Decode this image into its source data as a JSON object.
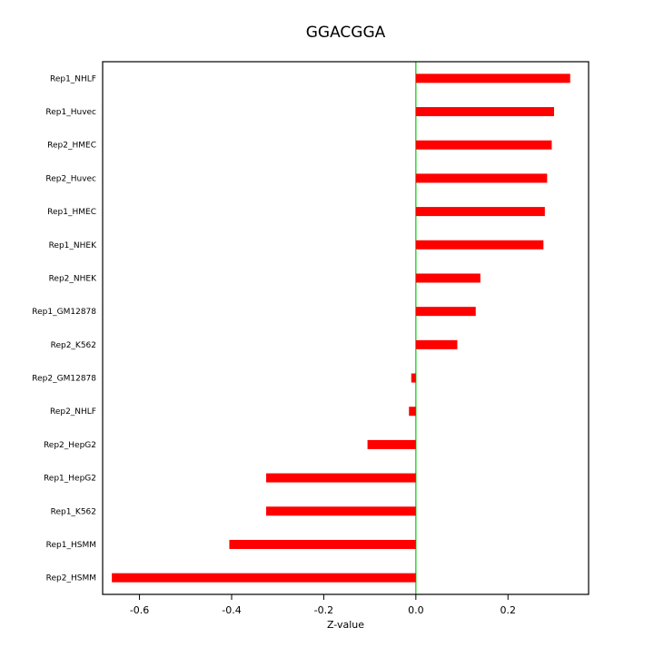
{
  "chart_data": {
    "type": "bar",
    "orientation": "horizontal",
    "title": "GGACGGA",
    "xlabel": "Z-value",
    "ylabel": "",
    "grid": false,
    "legend": null,
    "bar_color": "#ff0000",
    "zero_line_color": "#00cc00",
    "xlim": [
      -0.68,
      0.375
    ],
    "x_ticks": [
      {
        "value": -0.6,
        "label": "-0.6"
      },
      {
        "value": -0.4,
        "label": "-0.4"
      },
      {
        "value": -0.2,
        "label": "-0.2"
      },
      {
        "value": 0.0,
        "label": "0.0"
      },
      {
        "value": 0.2,
        "label": "0.2"
      }
    ],
    "categories_top_to_bottom": [
      "Rep1_NHLF",
      "Rep1_Huvec",
      "Rep2_HMEC",
      "Rep2_Huvec",
      "Rep1_HMEC",
      "Rep1_NHEK",
      "Rep2_NHEK",
      "Rep1_GM12878",
      "Rep2_K562",
      "Rep2_GM12878",
      "Rep2_NHLF",
      "Rep2_HepG2",
      "Rep1_HepG2",
      "Rep1_K562",
      "Rep1_HSMM",
      "Rep2_HSMM"
    ],
    "values": [
      0.335,
      0.3,
      0.295,
      0.285,
      0.28,
      0.277,
      0.14,
      0.13,
      0.09,
      -0.01,
      -0.015,
      -0.105,
      -0.325,
      -0.325,
      -0.405,
      -0.66
    ]
  }
}
